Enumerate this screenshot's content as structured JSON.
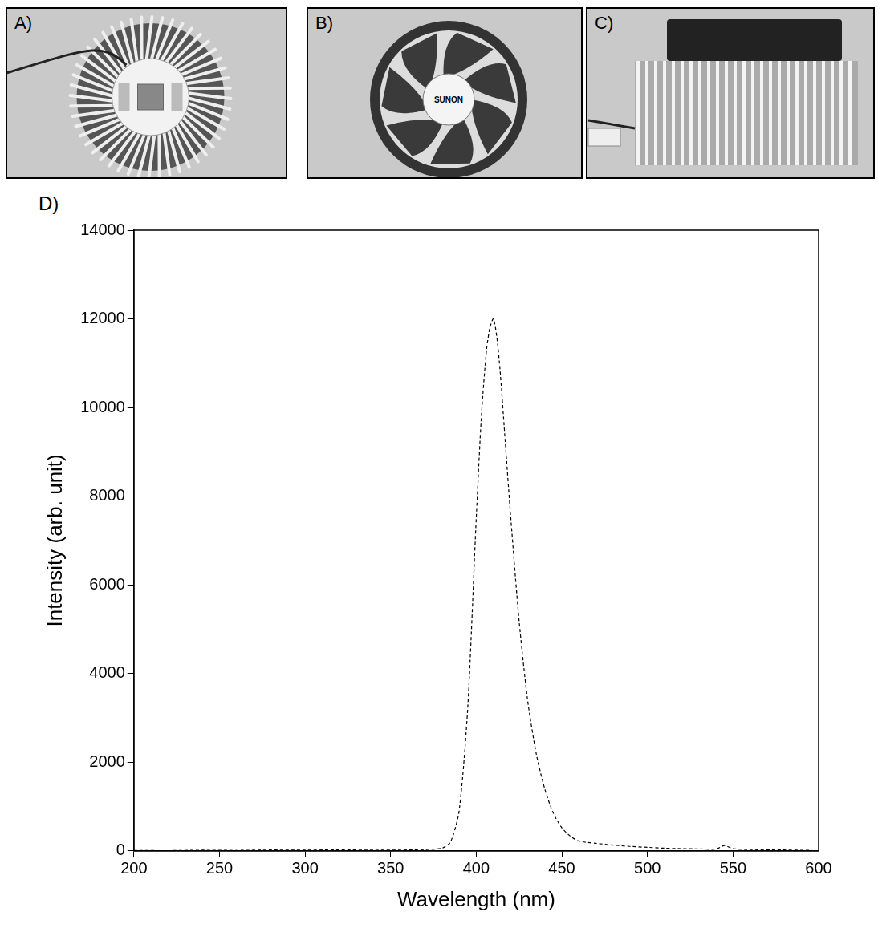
{
  "photo_panels": [
    {
      "label": "A)"
    },
    {
      "label": "B)",
      "fan_label": "SUNON"
    },
    {
      "label": "C)"
    }
  ],
  "chart_panel_label": "D)",
  "chart_data": {
    "type": "line",
    "x_label": "Wavelength (nm)",
    "y_label": "Intensity (arb. unit)",
    "x": [
      200,
      220,
      240,
      260,
      280,
      300,
      320,
      340,
      360,
      370,
      380,
      385,
      390,
      395,
      400,
      403,
      406,
      408,
      410,
      412,
      414,
      417,
      420,
      425,
      430,
      435,
      440,
      445,
      450,
      455,
      460,
      470,
      480,
      490,
      500,
      510,
      520,
      530,
      540,
      545,
      550,
      560,
      580,
      595
    ],
    "values": [
      10,
      5,
      15,
      10,
      20,
      15,
      25,
      15,
      20,
      30,
      60,
      200,
      900,
      3200,
      7500,
      9800,
      11300,
      11800,
      12000,
      11600,
      10800,
      9200,
      7600,
      5200,
      3400,
      2200,
      1400,
      850,
      520,
      330,
      220,
      170,
      130,
      100,
      80,
      60,
      50,
      45,
      40,
      120,
      50,
      30,
      20,
      10
    ],
    "color": "#000000",
    "line_style": "dashed",
    "xlim": [
      200,
      600
    ],
    "xticks": [
      200,
      250,
      300,
      350,
      400,
      450,
      500,
      550,
      600
    ],
    "ylim": [
      0,
      14000
    ],
    "yticks": [
      0,
      2000,
      4000,
      6000,
      8000,
      10000,
      12000,
      14000
    ],
    "grid": false
  }
}
